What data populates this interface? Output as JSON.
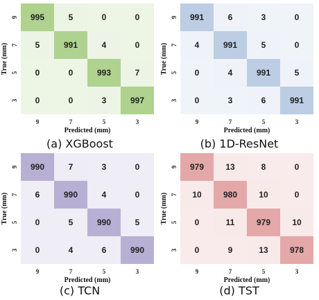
{
  "chart_data": [
    {
      "type": "heatmap",
      "title": "",
      "caption": "(a)  XGBoost",
      "xlabel": "Predicted (mm)",
      "ylabel": "True (mm)",
      "x_categories": [
        "9",
        "7",
        "5",
        "3"
      ],
      "y_categories": [
        "9",
        "7",
        "5",
        "3"
      ],
      "matrix": [
        [
          995,
          5,
          0,
          0
        ],
        [
          5,
          991,
          4,
          0
        ],
        [
          0,
          0,
          993,
          7
        ],
        [
          0,
          0,
          3,
          997
        ]
      ],
      "color": "#8dbe5f"
    },
    {
      "type": "heatmap",
      "title": "",
      "caption": "(b)  1D-ResNet",
      "xlabel": "Predicted (mm)",
      "ylabel": "True (mm)",
      "x_categories": [
        "9",
        "7",
        "5",
        "3"
      ],
      "y_categories": [
        "9",
        "7",
        "5",
        "3"
      ],
      "matrix": [
        [
          991,
          6,
          3,
          0
        ],
        [
          4,
          991,
          5,
          0
        ],
        [
          0,
          4,
          991,
          5
        ],
        [
          0,
          3,
          6,
          991
        ]
      ],
      "color": "#9fb8d8"
    },
    {
      "type": "heatmap",
      "title": "",
      "caption": "(c)  TCN",
      "xlabel": "Predicted (mm)",
      "ylabel": "True (mm)",
      "x_categories": [
        "9",
        "7",
        "5",
        "3"
      ],
      "y_categories": [
        "9",
        "7",
        "5",
        "3"
      ],
      "matrix": [
        [
          990,
          7,
          3,
          0
        ],
        [
          6,
          990,
          4,
          0
        ],
        [
          0,
          5,
          990,
          5
        ],
        [
          0,
          4,
          6,
          990
        ]
      ],
      "color": "#9a8ec2"
    },
    {
      "type": "heatmap",
      "title": "",
      "caption": "(d)  TST",
      "xlabel": "Predicted (mm)",
      "ylabel": "True (mm)",
      "x_categories": [
        "9",
        "7",
        "5",
        "3"
      ],
      "y_categories": [
        "9",
        "7",
        "5",
        "3"
      ],
      "matrix": [
        [
          979,
          13,
          8,
          0
        ],
        [
          10,
          980,
          10,
          0
        ],
        [
          0,
          11,
          979,
          10
        ],
        [
          0,
          9,
          13,
          978
        ]
      ],
      "color": "#d98383"
    }
  ]
}
